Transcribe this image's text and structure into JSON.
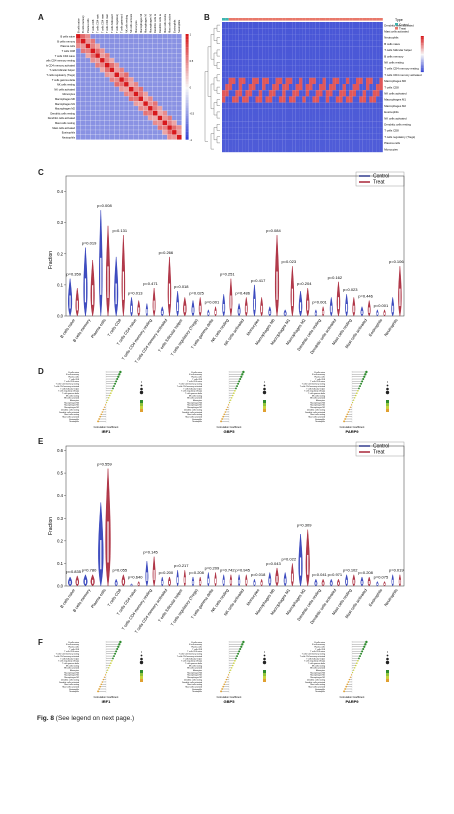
{
  "figure": {
    "panel_labels": [
      "A",
      "B",
      "C",
      "D",
      "E",
      "F"
    ],
    "caption_label": "Fig. 8",
    "caption_text": "(See legend on next page.)"
  },
  "panel_a": {
    "colors": {
      "high": "#d7191c",
      "mid": "#f7f7f7",
      "low": "#2b3bd1"
    },
    "legend_ticks": [
      "1",
      "0.5",
      "0",
      "-0.5",
      "-1"
    ]
  },
  "panel_b": {
    "legend_title": "Type",
    "legend_entries": [
      "Control",
      "Treat"
    ],
    "legend_colors": [
      "#3fb6b0",
      "#e8786a"
    ],
    "scale_ticks": [
      "4",
      "2",
      "0",
      "-2"
    ],
    "rows": [
      "Dendritic cells activated",
      "Mast cells activated",
      "Neutrophils",
      "B cells naive",
      "T cells follicular helper",
      "B cells memory",
      "NK cells resting",
      "T cells CD4 memory resting",
      "T cells CD4 memory activated",
      "Macrophages M0",
      "T cells CD8",
      "NK cells activated",
      "Macrophages M1",
      "Macrophages M2",
      "Eosinophils",
      "NK cells activated",
      "Dendritic cells resting",
      "T cells CD8",
      "T cells regulatory (Tregs)",
      "Plasma cells",
      "Monocytes"
    ]
  },
  "panel_c": {
    "legend": [
      "Control",
      "Treat"
    ],
    "colors": {
      "control": "#1f2fb5",
      "treat": "#a3172b"
    },
    "ylabel": "Fraction",
    "yticks": [
      "0.0",
      "0.1",
      "0.2",
      "0.3",
      "0.4"
    ],
    "categories": [
      "B cells naive",
      "B cells memory",
      "Plasma cells",
      "T cells CD8",
      "T cells CD4 naive",
      "T cells CD4 memory resting",
      "T cells CD4 memory activated",
      "T cells follicular helper",
      "T cells regulatory (Tregs)",
      "T cells gamma delta",
      "NK cells resting",
      "NK cells activated",
      "Monocytes",
      "Macrophages M0",
      "Macrophages M1",
      "Macrophages M2",
      "Dendritic cells resting",
      "Dendritic cells activated",
      "Mast cells resting",
      "Mast cells activated",
      "Eosinophils",
      "Neutrophils"
    ],
    "pvalues": [
      "p=0.359",
      "p=0.019",
      "p=0.008",
      "p=0.131",
      "p=0.013",
      "p=0.471",
      "p=0.266",
      "p=0.018",
      "p=0.025",
      "p=0.001",
      "p=0.251",
      "p=0.486",
      "p=0.417",
      "p=0.084",
      "p=0.023",
      "p=0.204",
      "p=0.001",
      "p=0.162",
      "p=0.023",
      "p=0.446",
      "p=0.001",
      "p=0.106"
    ]
  },
  "panel_d": {
    "subtitles": [
      "IRF1",
      "GBP5",
      "PARP9"
    ],
    "axis_label": "Correlation Coefficient"
  },
  "panel_e": {
    "legend": [
      "Control",
      "Treat"
    ],
    "ylabel": "Fraction",
    "yticks": [
      "0.0",
      "0.1",
      "0.2",
      "0.3",
      "0.4",
      "0.5",
      "0.6"
    ],
    "pvalues": [
      "p=0.835",
      "p=0.780",
      "p=0.559",
      "p=0.055",
      "p=0.640",
      "p=0.145",
      "p=0.200",
      "p=0.217",
      "p=0.208",
      "p=0.209",
      "p=0.742",
      "p=0.945",
      "p=0.018",
      "p=0.043",
      "p=0.022",
      "p=0.309",
      "p=0.041",
      "p=0.971",
      "p=0.102",
      "p=0.208",
      "p=0.075",
      "p=0.019"
    ]
  },
  "panel_f": {
    "subtitles": [
      "IRF1",
      "GBP5",
      "PARP9"
    ],
    "axis_label": "Correlation Coefficient"
  }
}
